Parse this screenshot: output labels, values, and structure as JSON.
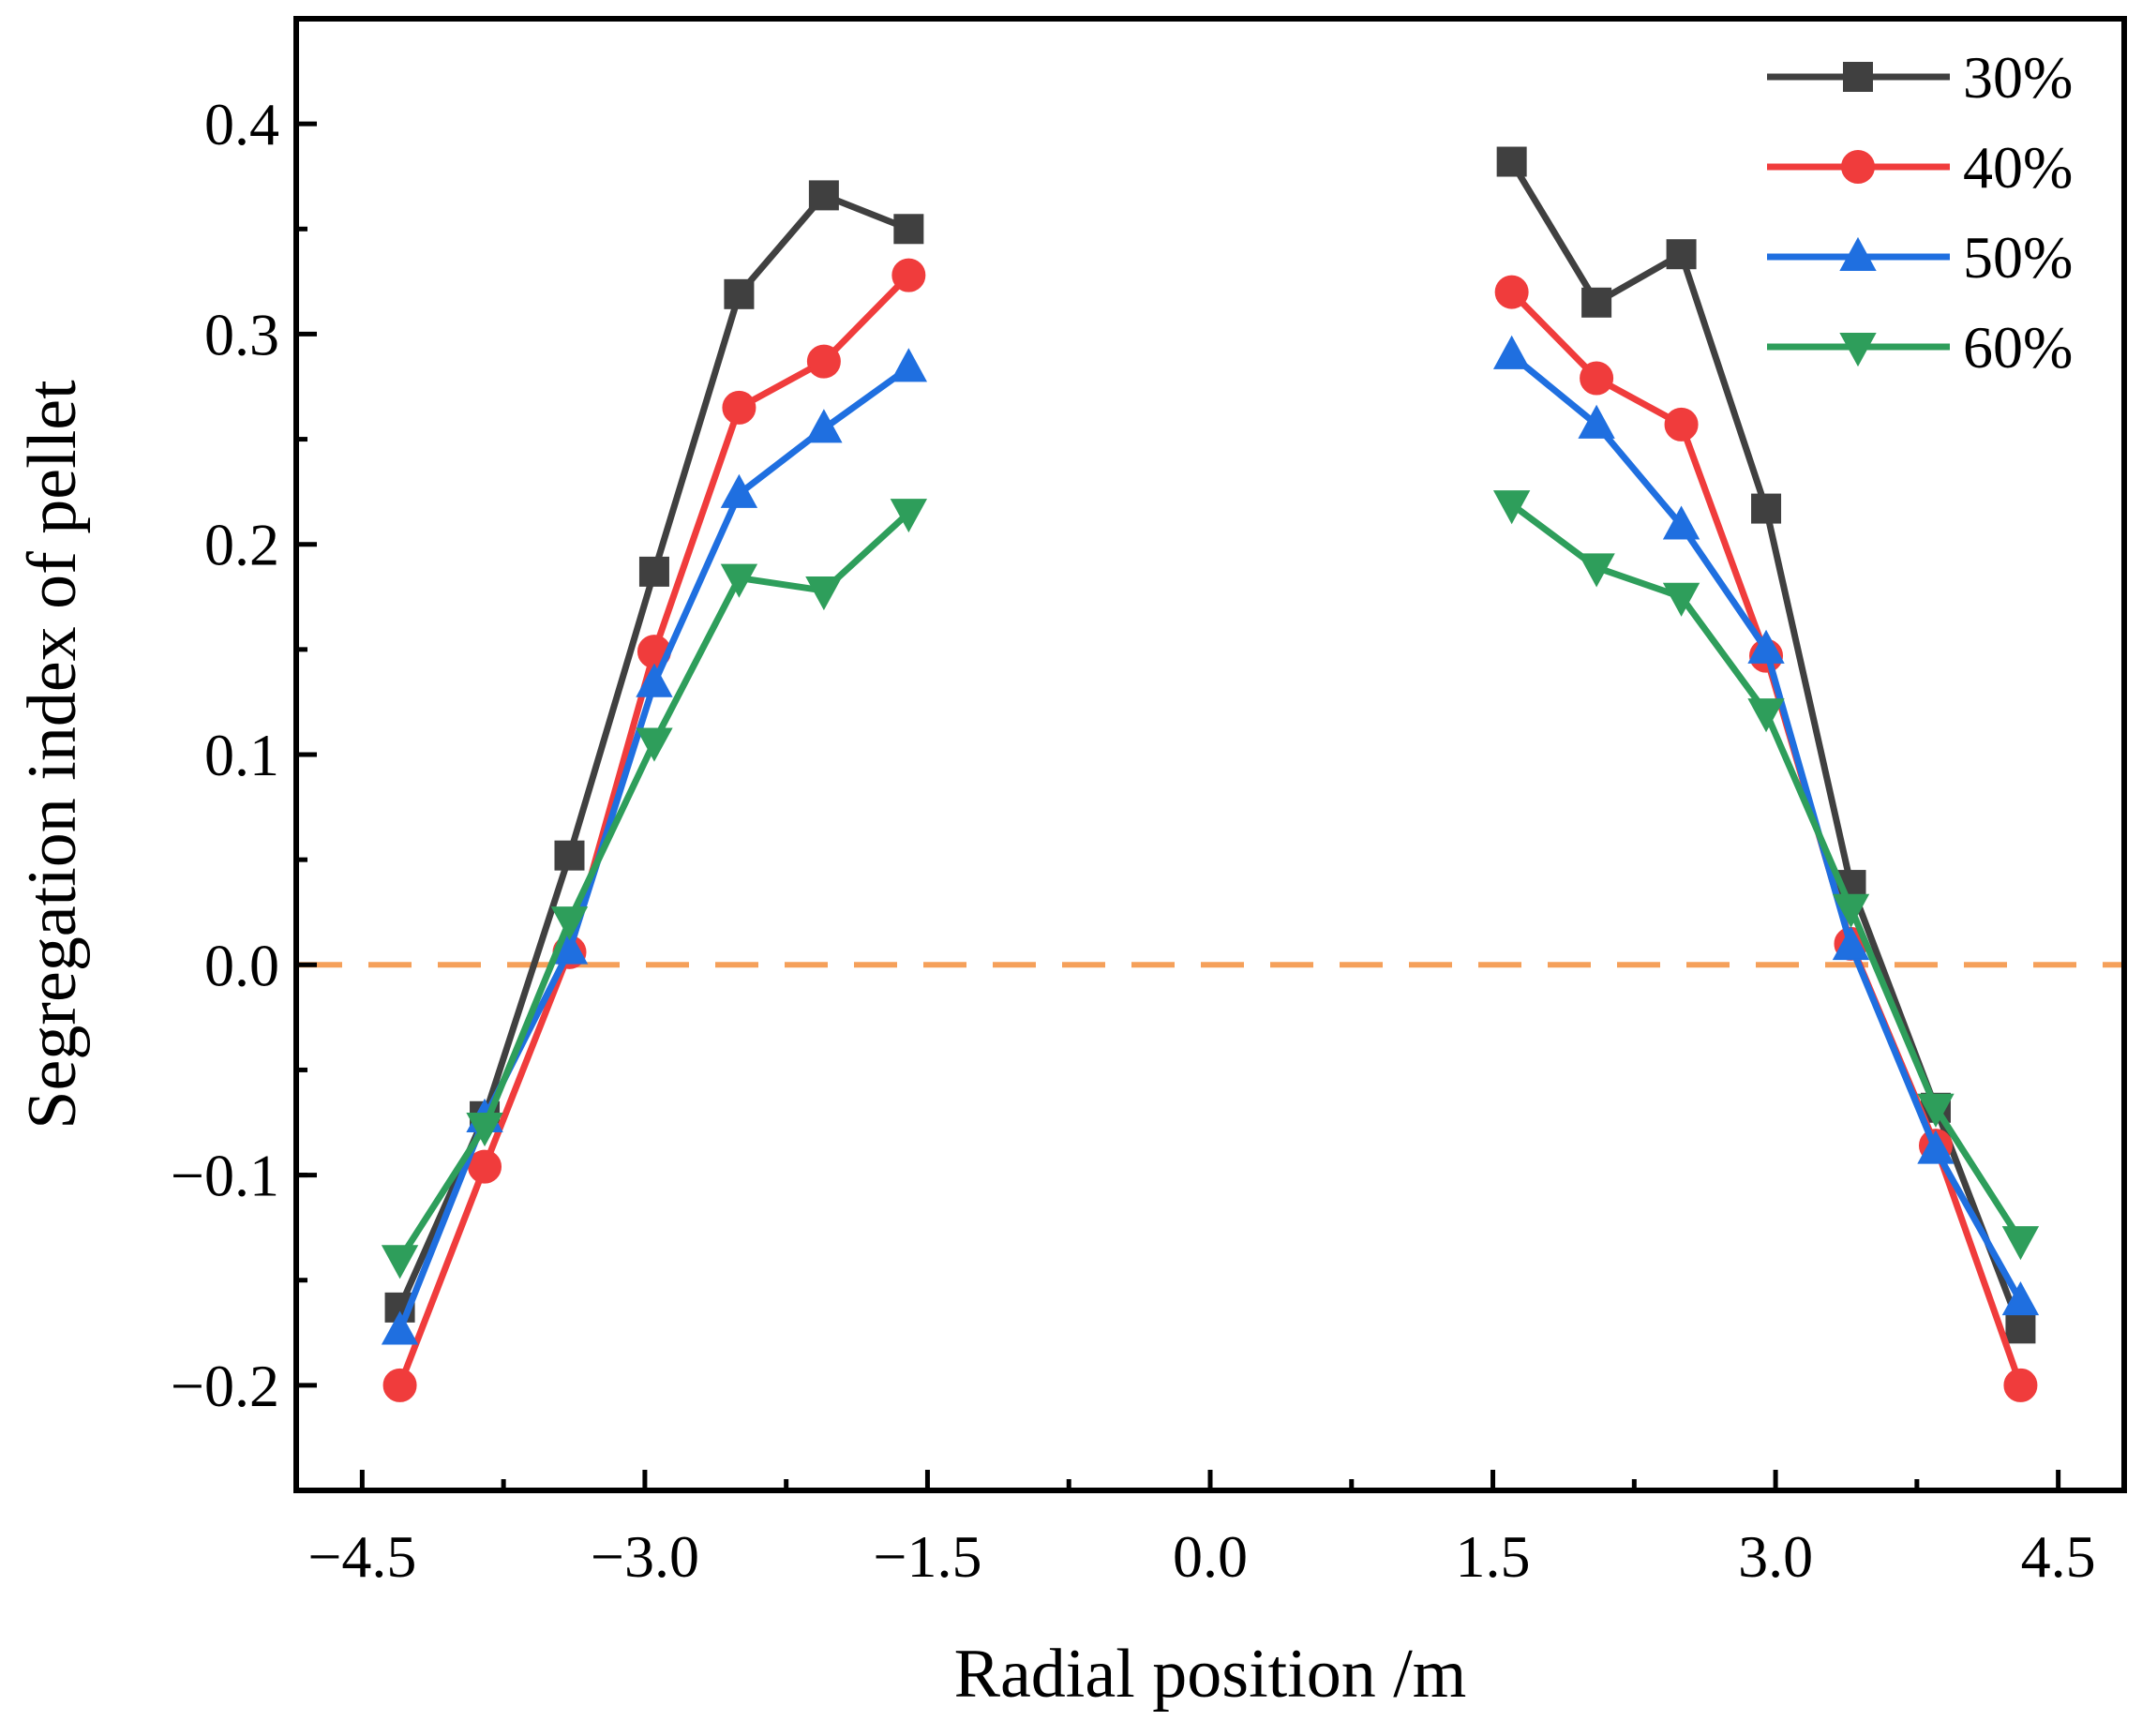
{
  "chart_data": {
    "type": "line",
    "xlabel": "Radial position /m",
    "ylabel": "Segregation index of pellet",
    "xlim": [
      -4.85,
      4.85
    ],
    "ylim": [
      -0.25,
      0.45
    ],
    "xticks": [
      -4.5,
      -3.0,
      -1.5,
      0.0,
      1.5,
      3.0,
      4.5
    ],
    "xtick_labels": [
      "−4.5",
      "−3.0",
      "−1.5",
      "0.0",
      "1.5",
      "3.0",
      "4.5"
    ],
    "yticks": [
      -0.2,
      -0.1,
      0.0,
      0.1,
      0.2,
      0.3,
      0.4
    ],
    "ytick_labels": [
      "−0.2",
      "−0.1",
      "0.0",
      "0.1",
      "0.2",
      "0.3",
      "0.4"
    ],
    "grid": false,
    "legend_position": "top-right",
    "reference_line": {
      "y": 0.0,
      "style": "dashed",
      "color": "#F5A05A"
    },
    "x_left": [
      -4.3,
      -3.85,
      -3.4,
      -2.95,
      -2.5,
      -2.05,
      -1.6
    ],
    "x_right": [
      1.6,
      2.05,
      2.5,
      2.95,
      3.4,
      3.85,
      4.3
    ],
    "series": [
      {
        "name": "30%",
        "color": "#404040",
        "marker": "square",
        "left": [
          -0.163,
          -0.072,
          0.052,
          0.187,
          0.319,
          0.366,
          0.35
        ],
        "right": [
          0.382,
          0.315,
          0.338,
          0.217,
          0.038,
          -0.068,
          -0.173
        ]
      },
      {
        "name": "40%",
        "color": "#F03C3C",
        "marker": "circle",
        "left": [
          -0.2,
          -0.096,
          0.006,
          0.149,
          0.265,
          0.287,
          0.328
        ],
        "right": [
          0.32,
          0.279,
          0.257,
          0.147,
          0.01,
          -0.086,
          -0.2
        ]
      },
      {
        "name": "50%",
        "color": "#1F6FE0",
        "marker": "triangle-up",
        "left": [
          -0.174,
          -0.073,
          0.007,
          0.134,
          0.224,
          0.255,
          0.284
        ],
        "right": [
          0.29,
          0.257,
          0.209,
          0.15,
          0.009,
          -0.088,
          -0.16
        ]
      },
      {
        "name": "60%",
        "color": "#2E9E5B",
        "marker": "triangle-down",
        "left": [
          -0.14,
          -0.077,
          0.021,
          0.106,
          0.184,
          0.178,
          0.215
        ],
        "right": [
          0.219,
          0.189,
          0.175,
          0.12,
          0.027,
          -0.068,
          -0.131
        ]
      }
    ]
  }
}
